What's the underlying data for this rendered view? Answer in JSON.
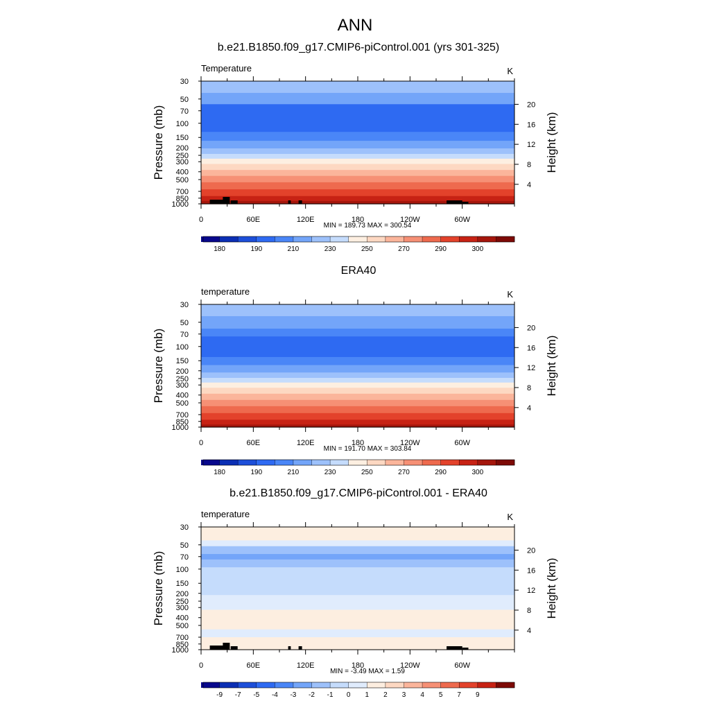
{
  "main_title": "ANN",
  "height_axis_label": "Height (km)",
  "pressure_axis_label": "Pressure (mb)",
  "colors": {
    "abs_palette": [
      "#08088c",
      "#0b2fb4",
      "#1d4fd9",
      "#2e6af2",
      "#4a86f7",
      "#73a5f9",
      "#9dc1fb",
      "#c5dcfc",
      "#fdefe1",
      "#fdd8c2",
      "#fbb59b",
      "#f69075",
      "#ee6a4e",
      "#e3422b",
      "#c72214",
      "#a5160c",
      "#7d0a06"
    ],
    "diff_palette": [
      "#08088c",
      "#0b2fb4",
      "#1d4fd9",
      "#2e6af2",
      "#4a86f7",
      "#73a5f9",
      "#9dc1fb",
      "#c5dcfc",
      "#e0ecfd",
      "#fdeee0",
      "#fdd8c2",
      "#fbb59b",
      "#f69075",
      "#ee6a4e",
      "#e3422b",
      "#c72214",
      "#7d0a06"
    ]
  },
  "chart_data": [
    {
      "type": "heatmap",
      "title": "b.e21.B1850.f09_g17.CMIP6-piControl.001 (yrs 301-325)",
      "left_label": "Temperature",
      "units": "K",
      "ylabel": "Pressure (mb)",
      "y2label": "Height (km)",
      "x_ticks": [
        "0",
        "60E",
        "120E",
        "180",
        "120W",
        "60W"
      ],
      "x_tick_values": [
        0,
        60,
        120,
        180,
        240,
        300
      ],
      "xlim": [
        0,
        360
      ],
      "p_ticks": [
        30,
        50,
        70,
        100,
        150,
        200,
        250,
        300,
        400,
        500,
        700,
        850,
        1000
      ],
      "height_ticks_km": [
        4,
        8,
        12,
        16,
        20
      ],
      "plim": [
        30,
        1000
      ],
      "bands": [
        {
          "p_top": 30,
          "p_bottom": 42,
          "level": 6
        },
        {
          "p_top": 42,
          "p_bottom": 58,
          "level": 5
        },
        {
          "p_top": 58,
          "p_bottom": 128,
          "level": 3
        },
        {
          "p_top": 128,
          "p_bottom": 165,
          "level": 4
        },
        {
          "p_top": 165,
          "p_bottom": 205,
          "level": 5
        },
        {
          "p_top": 205,
          "p_bottom": 240,
          "level": 6
        },
        {
          "p_top": 240,
          "p_bottom": 275,
          "level": 7
        },
        {
          "p_top": 275,
          "p_bottom": 320,
          "level": 8
        },
        {
          "p_top": 320,
          "p_bottom": 380,
          "level": 9
        },
        {
          "p_top": 380,
          "p_bottom": 450,
          "level": 10
        },
        {
          "p_top": 450,
          "p_bottom": 540,
          "level": 11
        },
        {
          "p_top": 540,
          "p_bottom": 660,
          "level": 12
        },
        {
          "p_top": 660,
          "p_bottom": 800,
          "level": 13
        },
        {
          "p_top": 800,
          "p_bottom": 920,
          "level": 14
        },
        {
          "p_top": 920,
          "p_bottom": 1000,
          "level": 15
        }
      ],
      "min_max_text": "MIN = 189.73  MAX = 300.54",
      "palette": "abs",
      "colorbar_labels": [
        "180",
        "190",
        "210",
        "230",
        "250",
        "270",
        "290",
        "300"
      ],
      "terrain": true
    },
    {
      "type": "heatmap",
      "title": "ERA40",
      "left_label": "temperature",
      "units": "K",
      "ylabel": "Pressure (mb)",
      "y2label": "Height (km)",
      "x_ticks": [
        "0",
        "60E",
        "120E",
        "180",
        "120W",
        "60W"
      ],
      "x_tick_values": [
        0,
        60,
        120,
        180,
        240,
        300
      ],
      "xlim": [
        0,
        360
      ],
      "p_ticks": [
        30,
        50,
        70,
        100,
        150,
        200,
        250,
        300,
        400,
        500,
        700,
        850,
        1000
      ],
      "height_ticks_km": [
        4,
        8,
        12,
        16,
        20
      ],
      "plim": [
        30,
        1000
      ],
      "bands": [
        {
          "p_top": 30,
          "p_bottom": 42,
          "level": 6
        },
        {
          "p_top": 42,
          "p_bottom": 60,
          "level": 5
        },
        {
          "p_top": 60,
          "p_bottom": 75,
          "level": 4
        },
        {
          "p_top": 75,
          "p_bottom": 135,
          "level": 3
        },
        {
          "p_top": 135,
          "p_bottom": 170,
          "level": 4
        },
        {
          "p_top": 170,
          "p_bottom": 210,
          "level": 5
        },
        {
          "p_top": 210,
          "p_bottom": 245,
          "level": 6
        },
        {
          "p_top": 245,
          "p_bottom": 280,
          "level": 7
        },
        {
          "p_top": 280,
          "p_bottom": 325,
          "level": 8
        },
        {
          "p_top": 325,
          "p_bottom": 385,
          "level": 9
        },
        {
          "p_top": 385,
          "p_bottom": 460,
          "level": 10
        },
        {
          "p_top": 460,
          "p_bottom": 550,
          "level": 11
        },
        {
          "p_top": 550,
          "p_bottom": 670,
          "level": 12
        },
        {
          "p_top": 670,
          "p_bottom": 810,
          "level": 13
        },
        {
          "p_top": 810,
          "p_bottom": 930,
          "level": 14
        },
        {
          "p_top": 930,
          "p_bottom": 1000,
          "level": 15
        }
      ],
      "min_max_text": "MIN = 191.70  MAX = 303.84",
      "palette": "abs",
      "colorbar_labels": [
        "180",
        "190",
        "210",
        "230",
        "250",
        "270",
        "290",
        "300"
      ],
      "terrain": false
    },
    {
      "type": "heatmap",
      "title": "b.e21.B1850.f09_g17.CMIP6-piControl.001 - ERA40",
      "left_label": "temperature",
      "units": "K",
      "ylabel": "Pressure (mb)",
      "y2label": "Height (km)",
      "x_ticks": [
        "0",
        "60E",
        "120E",
        "180",
        "120W",
        "60W"
      ],
      "x_tick_values": [
        0,
        60,
        120,
        180,
        240,
        300
      ],
      "xlim": [
        0,
        360
      ],
      "p_ticks": [
        30,
        50,
        70,
        100,
        150,
        200,
        250,
        300,
        400,
        500,
        700,
        850,
        1000
      ],
      "height_ticks_km": [
        4,
        8,
        12,
        16,
        20
      ],
      "plim": [
        30,
        1000
      ],
      "bands": [
        {
          "p_top": 30,
          "p_bottom": 44,
          "level": 9
        },
        {
          "p_top": 44,
          "p_bottom": 52,
          "level": 8
        },
        {
          "p_top": 52,
          "p_bottom": 65,
          "level": 6
        },
        {
          "p_top": 65,
          "p_bottom": 76,
          "level": 5
        },
        {
          "p_top": 76,
          "p_bottom": 95,
          "level": 6
        },
        {
          "p_top": 95,
          "p_bottom": 210,
          "level": 7
        },
        {
          "p_top": 210,
          "p_bottom": 320,
          "level": 8
        },
        {
          "p_top": 320,
          "p_bottom": 560,
          "level": 9
        },
        {
          "p_top": 560,
          "p_bottom": 700,
          "level": 8
        },
        {
          "p_top": 700,
          "p_bottom": 1000,
          "level": 9
        }
      ],
      "min_max_text": "MIN =  -3.49  MAX =   1.59",
      "palette": "diff",
      "colorbar_labels": [
        "-9",
        "-7",
        "-5",
        "-4",
        "-3",
        "-2",
        "-1",
        "0",
        "1",
        "2",
        "3",
        "4",
        "5",
        "7",
        "9"
      ],
      "terrain": true
    }
  ]
}
